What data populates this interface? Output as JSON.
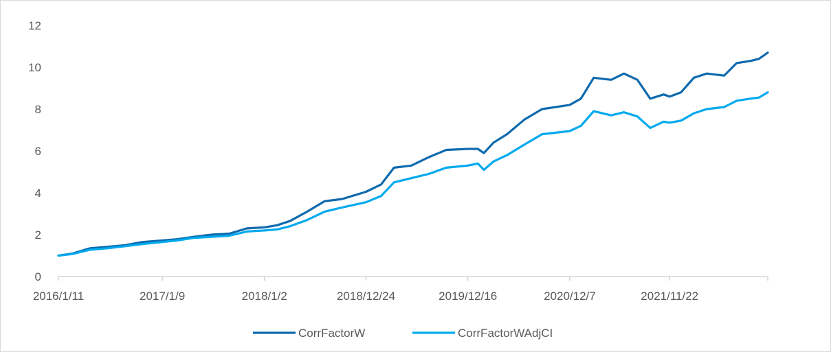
{
  "chart_data": {
    "type": "line",
    "title": "",
    "xlabel": "",
    "ylabel": "",
    "ylim": [
      0,
      12
    ],
    "yticks": [
      0,
      2,
      4,
      6,
      8,
      10,
      12
    ],
    "xlim": [
      "2016-01-11",
      "2022-11-01"
    ],
    "xtick_labels": [
      "2016/1/11",
      "2017/1/9",
      "2018/1/2",
      "2018/12/24",
      "2019/12/16",
      "2020/12/7",
      "2021/11/22"
    ],
    "xtick_dates": [
      "2016-01-11",
      "2017-01-09",
      "2018-01-02",
      "2018-12-24",
      "2019-12-16",
      "2020-12-07",
      "2021-11-22"
    ],
    "legend_position": "bottom",
    "grid": false,
    "series": [
      {
        "name": "CorrFactorW",
        "color": "#0e6aae",
        "points": [
          [
            "2016-01-11",
            1.0
          ],
          [
            "2016-03-01",
            1.1
          ],
          [
            "2016-05-01",
            1.35
          ],
          [
            "2016-07-01",
            1.42
          ],
          [
            "2016-09-01",
            1.5
          ],
          [
            "2016-11-01",
            1.65
          ],
          [
            "2017-01-09",
            1.72
          ],
          [
            "2017-03-01",
            1.78
          ],
          [
            "2017-05-01",
            1.9
          ],
          [
            "2017-07-01",
            2.0
          ],
          [
            "2017-09-01",
            2.05
          ],
          [
            "2017-11-01",
            2.3
          ],
          [
            "2018-01-02",
            2.35
          ],
          [
            "2018-02-15",
            2.45
          ],
          [
            "2018-04-01",
            2.65
          ],
          [
            "2018-06-01",
            3.1
          ],
          [
            "2018-08-01",
            3.6
          ],
          [
            "2018-10-01",
            3.7
          ],
          [
            "2018-12-24",
            4.05
          ],
          [
            "2019-02-15",
            4.4
          ],
          [
            "2019-04-01",
            5.2
          ],
          [
            "2019-06-01",
            5.3
          ],
          [
            "2019-08-01",
            5.7
          ],
          [
            "2019-10-01",
            6.05
          ],
          [
            "2019-12-16",
            6.1
          ],
          [
            "2020-01-20",
            6.1
          ],
          [
            "2020-02-10",
            5.9
          ],
          [
            "2020-03-15",
            6.4
          ],
          [
            "2020-05-01",
            6.8
          ],
          [
            "2020-07-01",
            7.5
          ],
          [
            "2020-09-01",
            8.0
          ],
          [
            "2020-12-07",
            8.2
          ],
          [
            "2021-01-15",
            8.5
          ],
          [
            "2021-03-01",
            9.5
          ],
          [
            "2021-05-01",
            9.4
          ],
          [
            "2021-06-15",
            9.7
          ],
          [
            "2021-08-01",
            9.4
          ],
          [
            "2021-09-15",
            8.5
          ],
          [
            "2021-11-01",
            8.7
          ],
          [
            "2021-11-22",
            8.6
          ],
          [
            "2022-01-01",
            8.8
          ],
          [
            "2022-02-15",
            9.5
          ],
          [
            "2022-04-01",
            9.7
          ],
          [
            "2022-06-01",
            9.6
          ],
          [
            "2022-07-15",
            10.2
          ],
          [
            "2022-09-01",
            10.3
          ],
          [
            "2022-10-01",
            10.4
          ],
          [
            "2022-11-01",
            10.7
          ]
        ]
      },
      {
        "name": "CorrFactorWAdjCI",
        "color": "#00aaee",
        "points": [
          [
            "2016-01-11",
            1.0
          ],
          [
            "2016-03-01",
            1.08
          ],
          [
            "2016-05-01",
            1.28
          ],
          [
            "2016-07-01",
            1.35
          ],
          [
            "2016-09-01",
            1.45
          ],
          [
            "2016-11-01",
            1.55
          ],
          [
            "2017-01-09",
            1.65
          ],
          [
            "2017-03-01",
            1.72
          ],
          [
            "2017-05-01",
            1.85
          ],
          [
            "2017-07-01",
            1.9
          ],
          [
            "2017-09-01",
            1.95
          ],
          [
            "2017-11-01",
            2.15
          ],
          [
            "2018-01-02",
            2.2
          ],
          [
            "2018-02-15",
            2.25
          ],
          [
            "2018-04-01",
            2.4
          ],
          [
            "2018-06-01",
            2.7
          ],
          [
            "2018-08-01",
            3.1
          ],
          [
            "2018-10-01",
            3.3
          ],
          [
            "2018-12-24",
            3.55
          ],
          [
            "2019-02-15",
            3.85
          ],
          [
            "2019-04-01",
            4.5
          ],
          [
            "2019-06-01",
            4.7
          ],
          [
            "2019-08-01",
            4.9
          ],
          [
            "2019-10-01",
            5.2
          ],
          [
            "2019-12-16",
            5.3
          ],
          [
            "2020-01-20",
            5.4
          ],
          [
            "2020-02-10",
            5.1
          ],
          [
            "2020-03-15",
            5.5
          ],
          [
            "2020-05-01",
            5.8
          ],
          [
            "2020-07-01",
            6.3
          ],
          [
            "2020-09-01",
            6.8
          ],
          [
            "2020-12-07",
            6.95
          ],
          [
            "2021-01-15",
            7.2
          ],
          [
            "2021-03-01",
            7.9
          ],
          [
            "2021-05-01",
            7.7
          ],
          [
            "2021-06-15",
            7.85
          ],
          [
            "2021-08-01",
            7.65
          ],
          [
            "2021-09-15",
            7.1
          ],
          [
            "2021-11-01",
            7.4
          ],
          [
            "2021-11-22",
            7.35
          ],
          [
            "2022-01-01",
            7.45
          ],
          [
            "2022-02-15",
            7.8
          ],
          [
            "2022-04-01",
            8.0
          ],
          [
            "2022-06-01",
            8.1
          ],
          [
            "2022-07-15",
            8.4
          ],
          [
            "2022-09-01",
            8.5
          ],
          [
            "2022-10-01",
            8.55
          ],
          [
            "2022-11-01",
            8.8
          ]
        ]
      }
    ]
  }
}
